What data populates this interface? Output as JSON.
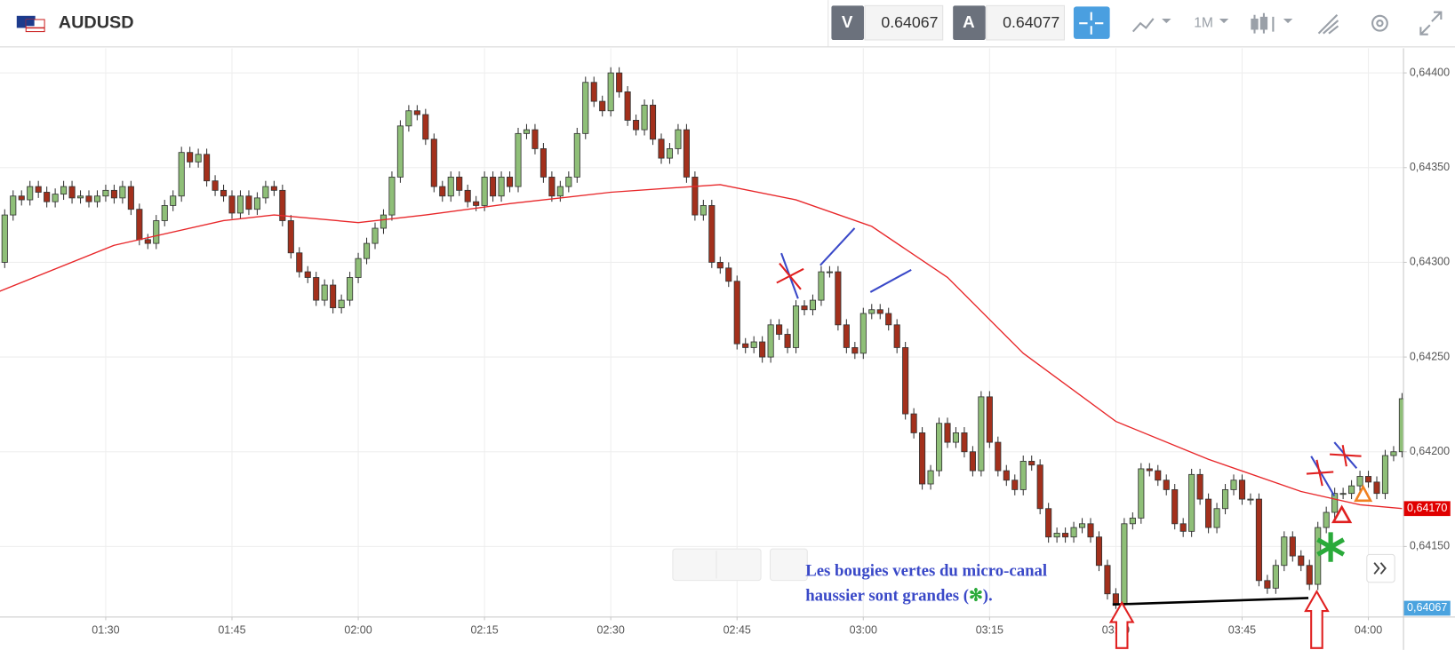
{
  "header": {
    "symbol": "AUDUSD",
    "sell_label": "V",
    "sell_price": 0.64067,
    "buy_label": "A",
    "buy_price": 0.64077,
    "timeframe": "1M"
  },
  "chart_data": {
    "type": "candlestick",
    "x": [
      "01:18",
      "01:19",
      "01:20",
      "01:21",
      "01:22",
      "01:23",
      "01:24",
      "01:25",
      "01:26",
      "01:27",
      "01:28",
      "01:29",
      "01:30",
      "01:31",
      "01:32",
      "01:33",
      "01:34",
      "01:35",
      "01:36",
      "01:37",
      "01:38",
      "01:39",
      "01:40",
      "01:41",
      "01:42",
      "01:43",
      "01:44",
      "01:45",
      "01:46",
      "01:47",
      "01:48",
      "01:49",
      "01:50",
      "01:51",
      "01:52",
      "01:53",
      "01:54",
      "01:55",
      "01:56",
      "01:57",
      "01:58",
      "01:59",
      "02:00",
      "02:01",
      "02:02",
      "02:03",
      "02:04",
      "02:05",
      "02:06",
      "02:07",
      "02:08",
      "02:09",
      "02:10",
      "02:11",
      "02:12",
      "02:13",
      "02:14",
      "02:15",
      "02:16",
      "02:17",
      "02:18",
      "02:19",
      "02:20",
      "02:21",
      "02:22",
      "02:23",
      "02:24",
      "02:25",
      "02:26",
      "02:27",
      "02:28",
      "02:29",
      "02:30",
      "02:31",
      "02:32",
      "02:33",
      "02:34",
      "02:35",
      "02:36",
      "02:37",
      "02:38",
      "02:39",
      "02:40",
      "02:41",
      "02:42",
      "02:43",
      "02:44",
      "02:45",
      "02:46",
      "02:47",
      "02:48",
      "02:49",
      "02:50",
      "02:51",
      "02:52",
      "02:53",
      "02:54",
      "02:55",
      "02:56",
      "02:57",
      "02:58",
      "02:59",
      "03:00",
      "03:01",
      "03:02",
      "03:03",
      "03:04",
      "03:05",
      "03:06",
      "03:07",
      "03:08",
      "03:09",
      "03:10",
      "03:11",
      "03:12",
      "03:13",
      "03:14",
      "03:15",
      "03:16",
      "03:17",
      "03:18",
      "03:19",
      "03:20",
      "03:21",
      "03:22",
      "03:23",
      "03:24",
      "03:25",
      "03:26",
      "03:27",
      "03:28",
      "03:29",
      "03:30",
      "03:31",
      "03:32",
      "03:33",
      "03:34",
      "03:35",
      "03:36",
      "03:37",
      "03:38",
      "03:39",
      "03:40",
      "03:41",
      "03:42",
      "03:43",
      "03:44",
      "03:45",
      "03:46",
      "03:47",
      "03:48",
      "03:49",
      "03:50",
      "03:51",
      "03:52",
      "03:53",
      "03:54",
      "03:55",
      "03:56",
      "03:57",
      "03:58",
      "03:59",
      "04:00",
      "04:01",
      "04:02",
      "04:03",
      "04:04"
    ],
    "open": [
      0.643,
      0.64325,
      0.64335,
      0.64333,
      0.6434,
      0.64337,
      0.64332,
      0.64336,
      0.6434,
      0.64334,
      0.64335,
      0.64332,
      0.64335,
      0.64338,
      0.64334,
      0.6434,
      0.64328,
      0.64312,
      0.6431,
      0.64322,
      0.6433,
      0.64335,
      0.64358,
      0.64353,
      0.64357,
      0.64343,
      0.64338,
      0.64335,
      0.64326,
      0.64335,
      0.64328,
      0.64334,
      0.6434,
      0.64338,
      0.64322,
      0.64305,
      0.64295,
      0.64292,
      0.6428,
      0.64288,
      0.64276,
      0.6428,
      0.64292,
      0.64302,
      0.6431,
      0.64318,
      0.64325,
      0.64345,
      0.64372,
      0.6438,
      0.64378,
      0.64365,
      0.6434,
      0.64335,
      0.64345,
      0.64338,
      0.64332,
      0.6433,
      0.64345,
      0.64335,
      0.64345,
      0.6434,
      0.64368,
      0.6437,
      0.6436,
      0.64345,
      0.64335,
      0.6434,
      0.64345,
      0.64368,
      0.64395,
      0.64385,
      0.6438,
      0.644,
      0.6439,
      0.64375,
      0.6437,
      0.64383,
      0.64365,
      0.64355,
      0.6436,
      0.6437,
      0.64345,
      0.64325,
      0.6433,
      0.643,
      0.64297,
      0.6429,
      0.64257,
      0.64255,
      0.64258,
      0.6425,
      0.64267,
      0.64262,
      0.64255,
      0.64277,
      0.64275,
      0.6428,
      0.64295,
      0.64295,
      0.64267,
      0.64255,
      0.64252,
      0.64273,
      0.64275,
      0.64273,
      0.64267,
      0.64255,
      0.6422,
      0.6421,
      0.64183,
      0.6419,
      0.64215,
      0.64205,
      0.6421,
      0.642,
      0.6419,
      0.64229,
      0.64205,
      0.6419,
      0.64185,
      0.6418,
      0.64195,
      0.64193,
      0.6417,
      0.64155,
      0.64157,
      0.64155,
      0.6416,
      0.64162,
      0.64155,
      0.6414,
      0.64125,
      0.6412,
      0.64162,
      0.64165,
      0.64191,
      0.6419,
      0.64185,
      0.6418,
      0.64162,
      0.64158,
      0.64188,
      0.64175,
      0.6416,
      0.6417,
      0.6418,
      0.64185,
      0.64175,
      0.64175,
      0.64132,
      0.64128,
      0.6414,
      0.64155,
      0.64145,
      0.6414,
      0.6413,
      0.6416,
      0.64168,
      0.64178,
      0.64178,
      0.64182,
      0.64187,
      0.64184,
      0.64178,
      0.64198,
      0.642
    ],
    "high": [
      0.64328,
      0.64338,
      0.64338,
      0.64343,
      0.64343,
      0.6434,
      0.64339,
      0.64343,
      0.64343,
      0.64338,
      0.64338,
      0.64338,
      0.64341,
      0.64341,
      0.64343,
      0.64343,
      0.64331,
      0.64315,
      0.64325,
      0.64333,
      0.64338,
      0.64361,
      0.64361,
      0.6436,
      0.6436,
      0.64346,
      0.64341,
      0.64338,
      0.64338,
      0.64338,
      0.64337,
      0.64343,
      0.64343,
      0.64341,
      0.64325,
      0.64308,
      0.64298,
      0.64295,
      0.64291,
      0.64291,
      0.64283,
      0.64295,
      0.64305,
      0.64313,
      0.64321,
      0.64328,
      0.64348,
      0.64375,
      0.64383,
      0.64383,
      0.64381,
      0.64368,
      0.64343,
      0.64348,
      0.64348,
      0.64341,
      0.64335,
      0.64348,
      0.64348,
      0.64348,
      0.64348,
      0.64371,
      0.64373,
      0.64373,
      0.64363,
      0.64348,
      0.64343,
      0.64348,
      0.64371,
      0.64398,
      0.64398,
      0.64388,
      0.64403,
      0.64403,
      0.64393,
      0.64378,
      0.64386,
      0.64386,
      0.64368,
      0.64363,
      0.64373,
      0.64373,
      0.64348,
      0.64333,
      0.64333,
      0.64303,
      0.643,
      0.64293,
      0.6426,
      0.64261,
      0.64261,
      0.6427,
      0.6427,
      0.64265,
      0.6428,
      0.6428,
      0.64283,
      0.64298,
      0.64298,
      0.64298,
      0.6427,
      0.64258,
      0.64276,
      0.64278,
      0.64278,
      0.64276,
      0.6427,
      0.64258,
      0.64223,
      0.64213,
      0.64193,
      0.64218,
      0.64218,
      0.64213,
      0.64213,
      0.64203,
      0.64232,
      0.64232,
      0.64208,
      0.64193,
      0.64188,
      0.64198,
      0.64198,
      0.64196,
      0.64173,
      0.6416,
      0.6416,
      0.64163,
      0.64165,
      0.64165,
      0.64158,
      0.64143,
      0.64128,
      0.64165,
      0.64168,
      0.64194,
      0.64194,
      0.64193,
      0.64188,
      0.64183,
      0.64165,
      0.64191,
      0.64191,
      0.64178,
      0.64173,
      0.64183,
      0.64188,
      0.64188,
      0.64178,
      0.64178,
      0.64135,
      0.64143,
      0.64158,
      0.64158,
      0.64148,
      0.64143,
      0.64163,
      0.64171,
      0.64181,
      0.64181,
      0.64185,
      0.6419,
      0.6419,
      0.64187,
      0.64201,
      0.64203,
      0.64231
    ],
    "low": [
      0.64297,
      0.64322,
      0.6433,
      0.6433,
      0.64334,
      0.64329,
      0.64329,
      0.64333,
      0.64331,
      0.64331,
      0.64329,
      0.64329,
      0.64332,
      0.64331,
      0.64331,
      0.64325,
      0.64309,
      0.64307,
      0.64307,
      0.64319,
      0.64327,
      0.64332,
      0.6435,
      0.6435,
      0.6434,
      0.64335,
      0.64332,
      0.64323,
      0.64323,
      0.64325,
      0.64325,
      0.64331,
      0.64335,
      0.64319,
      0.64302,
      0.64292,
      0.64289,
      0.64277,
      0.64277,
      0.64273,
      0.64273,
      0.64277,
      0.64289,
      0.64299,
      0.64307,
      0.64315,
      0.64322,
      0.64342,
      0.64369,
      0.64375,
      0.64362,
      0.64337,
      0.64332,
      0.64332,
      0.64335,
      0.64329,
      0.64327,
      0.64327,
      0.64332,
      0.64332,
      0.64337,
      0.64337,
      0.64365,
      0.64357,
      0.64342,
      0.64332,
      0.64332,
      0.64337,
      0.64342,
      0.64365,
      0.64382,
      0.64377,
      0.64377,
      0.64387,
      0.64372,
      0.64367,
      0.64367,
      0.64362,
      0.64352,
      0.64352,
      0.64357,
      0.64342,
      0.64322,
      0.64322,
      0.64297,
      0.64294,
      0.64287,
      0.64254,
      0.64252,
      0.64252,
      0.64247,
      0.64247,
      0.64259,
      0.64252,
      0.64252,
      0.64272,
      0.64272,
      0.64277,
      0.64292,
      0.64264,
      0.64252,
      0.64249,
      0.64249,
      0.6427,
      0.6427,
      0.64264,
      0.64252,
      0.64217,
      0.64207,
      0.6418,
      0.6418,
      0.64187,
      0.64202,
      0.64202,
      0.64197,
      0.64187,
      0.64187,
      0.64202,
      0.64187,
      0.64182,
      0.64177,
      0.64177,
      0.6419,
      0.64167,
      0.64152,
      0.64152,
      0.64152,
      0.64152,
      0.64157,
      0.64152,
      0.64137,
      0.64122,
      0.64117,
      0.64117,
      0.64159,
      0.64162,
      0.64187,
      0.64182,
      0.64177,
      0.64159,
      0.64155,
      0.64155,
      0.64172,
      0.64157,
      0.64157,
      0.64167,
      0.64177,
      0.64172,
      0.64172,
      0.64129,
      0.64125,
      0.64125,
      0.64137,
      0.64142,
      0.64137,
      0.64127,
      0.64127,
      0.64157,
      0.64165,
      0.64175,
      0.64175,
      0.64179,
      0.64181,
      0.64175,
      0.64175,
      0.64195,
      0.64197
    ],
    "close": [
      0.64325,
      0.64335,
      0.64333,
      0.6434,
      0.64337,
      0.64332,
      0.64336,
      0.6434,
      0.64334,
      0.64335,
      0.64332,
      0.64335,
      0.64338,
      0.64334,
      0.6434,
      0.64328,
      0.64312,
      0.6431,
      0.64322,
      0.6433,
      0.64335,
      0.64358,
      0.64353,
      0.64357,
      0.64343,
      0.64338,
      0.64335,
      0.64326,
      0.64335,
      0.64328,
      0.64334,
      0.6434,
      0.64338,
      0.64322,
      0.64305,
      0.64295,
      0.64292,
      0.6428,
      0.64288,
      0.64276,
      0.6428,
      0.64292,
      0.64302,
      0.6431,
      0.64318,
      0.64325,
      0.64345,
      0.64372,
      0.6438,
      0.64378,
      0.64365,
      0.6434,
      0.64335,
      0.64345,
      0.64338,
      0.64332,
      0.6433,
      0.64345,
      0.64335,
      0.64345,
      0.6434,
      0.64368,
      0.6437,
      0.6436,
      0.64345,
      0.64335,
      0.6434,
      0.64345,
      0.64368,
      0.64395,
      0.64385,
      0.6438,
      0.644,
      0.6439,
      0.64375,
      0.6437,
      0.64383,
      0.64365,
      0.64355,
      0.6436,
      0.6437,
      0.64345,
      0.64325,
      0.6433,
      0.643,
      0.64297,
      0.6429,
      0.64257,
      0.64255,
      0.64258,
      0.6425,
      0.64267,
      0.64262,
      0.64255,
      0.64277,
      0.64275,
      0.6428,
      0.64295,
      0.64295,
      0.64267,
      0.64255,
      0.64252,
      0.64273,
      0.64275,
      0.64273,
      0.64267,
      0.64255,
      0.6422,
      0.6421,
      0.64183,
      0.6419,
      0.64215,
      0.64205,
      0.6421,
      0.642,
      0.6419,
      0.64229,
      0.64205,
      0.6419,
      0.64185,
      0.6418,
      0.64195,
      0.64193,
      0.6417,
      0.64155,
      0.64157,
      0.64155,
      0.6416,
      0.64162,
      0.64155,
      0.6414,
      0.64125,
      0.6412,
      0.64162,
      0.64165,
      0.64191,
      0.6419,
      0.64185,
      0.6418,
      0.64162,
      0.64158,
      0.64188,
      0.64175,
      0.6416,
      0.6417,
      0.6418,
      0.64185,
      0.64175,
      0.64175,
      0.64132,
      0.64128,
      0.6414,
      0.64155,
      0.64145,
      0.6414,
      0.6413,
      0.6416,
      0.64168,
      0.64178,
      0.64178,
      0.64182,
      0.64187,
      0.64184,
      0.64178,
      0.64198,
      0.642,
      0.64228
    ],
    "up_color": "#8fbf78",
    "down_color": "#a3301c",
    "ma": {
      "color": "#e8272a",
      "x": [
        "01:17",
        "01:31",
        "01:44",
        "01:50",
        "02:00",
        "02:08",
        "02:18",
        "02:30",
        "02:43",
        "02:52",
        "03:01",
        "03:10",
        "03:19",
        "03:30",
        "03:41",
        "03:52",
        "03:59",
        "04:04"
      ],
      "values": [
        0.64284,
        0.64309,
        0.64322,
        0.64325,
        0.64321,
        0.64325,
        0.64331,
        0.64337,
        0.64341,
        0.64333,
        0.64319,
        0.64292,
        0.64252,
        0.64216,
        0.64196,
        0.64179,
        0.64172,
        0.6417
      ]
    },
    "xlim": [
      "01:17",
      "04:05"
    ],
    "xticks": [
      "01:30",
      "01:45",
      "02:00",
      "02:15",
      "02:30",
      "02:45",
      "03:00",
      "03:15",
      "03:30",
      "03:45",
      "04:00"
    ],
    "ylim": [
      0.64113,
      0.64413
    ],
    "yticks": [
      {
        "value": 0.6415,
        "label": "0,64150"
      },
      {
        "value": 0.642,
        "label": "0,64200"
      },
      {
        "value": 0.6425,
        "label": "0,64250"
      },
      {
        "value": 0.643,
        "label": "0,64300"
      },
      {
        "value": 0.6435,
        "label": "0,64350"
      },
      {
        "value": 0.644,
        "label": "0,64400"
      }
    ],
    "grid": true,
    "price_tag": {
      "value": 0.6417,
      "label": "0,64170",
      "color": "#e00000"
    },
    "last_tag": {
      "label": "0,64067",
      "color": "#4aa3df"
    },
    "annotation": {
      "line1": "Les bougies vertes du micro-canal",
      "line2": "haussier sont grandes (",
      "symbol": "✻",
      "end": ")."
    }
  }
}
